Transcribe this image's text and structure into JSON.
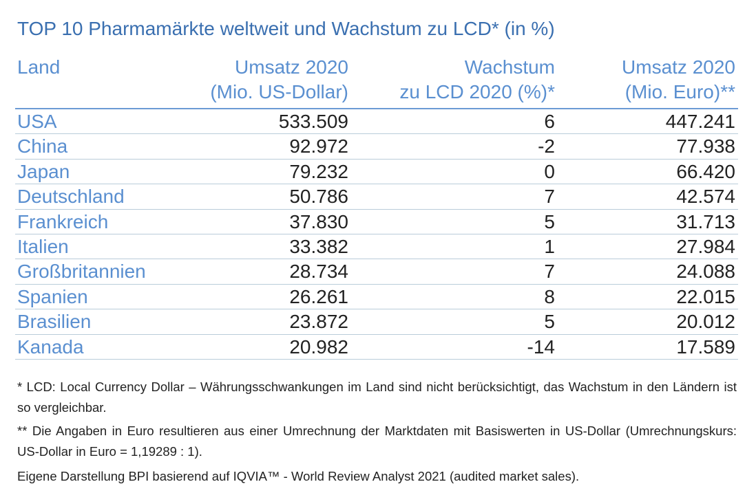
{
  "title": "TOP 10 Pharmamärkte weltweit und Wachstum zu LCD* (in %)",
  "colors": {
    "title": "#3a6fb0",
    "header": "#5a8fd0",
    "country": "#5a8fd0",
    "values": "#222222",
    "rule": "#6a9ad4",
    "row_divider": "#b9ccd9"
  },
  "chart_data": {
    "type": "table",
    "title": "TOP 10 Pharmamärkte weltweit und Wachstum zu LCD* (in %)",
    "columns": [
      {
        "line1": "Land",
        "line2": ""
      },
      {
        "line1": "Umsatz 2020",
        "line2": "(Mio. US-Dollar)"
      },
      {
        "line1": "Wachstum",
        "line2": "zu LCD 2020 (%)*"
      },
      {
        "line1": "Umsatz 2020",
        "line2": "(Mio. Euro)**"
      }
    ],
    "rows": [
      {
        "land": "USA",
        "umsatz_usd": "533.509",
        "wachstum": "6",
        "umsatz_eur": "447.241"
      },
      {
        "land": "China",
        "umsatz_usd": "92.972",
        "wachstum": "-2",
        "umsatz_eur": "77.938"
      },
      {
        "land": "Japan",
        "umsatz_usd": "79.232",
        "wachstum": "0",
        "umsatz_eur": "66.420"
      },
      {
        "land": "Deutschland",
        "umsatz_usd": "50.786",
        "wachstum": "7",
        "umsatz_eur": "42.574"
      },
      {
        "land": "Frankreich",
        "umsatz_usd": "37.830",
        "wachstum": "5",
        "umsatz_eur": "31.713"
      },
      {
        "land": "Italien",
        "umsatz_usd": "33.382",
        "wachstum": "1",
        "umsatz_eur": "27.984"
      },
      {
        "land": "Großbritannien",
        "umsatz_usd": "28.734",
        "wachstum": "7",
        "umsatz_eur": "24.088"
      },
      {
        "land": "Spanien",
        "umsatz_usd": "26.261",
        "wachstum": "8",
        "umsatz_eur": "22.015"
      },
      {
        "land": "Brasilien",
        "umsatz_usd": "23.872",
        "wachstum": "5",
        "umsatz_eur": "20.012"
      },
      {
        "land": "Kanada",
        "umsatz_usd": "20.982",
        "wachstum": "-14",
        "umsatz_eur": "17.589"
      }
    ]
  },
  "notes": {
    "lcd": "* LCD: Local Currency Dollar – Währungsschwankungen im Land sind nicht berücksichtigt, das Wachstum in den Ländern ist so vergleichbar.",
    "euro": "** Die Angaben in Euro resultieren aus einer Umrechnung der Marktdaten mit Basiswerten in US-Dollar (Umrechnungskurs: US-Dollar in Euro = 1,19289 : 1).",
    "source": "Eigene Darstellung BPI basierend auf IQVIA™ - World Review Analyst 2021 (audited market sales)."
  }
}
